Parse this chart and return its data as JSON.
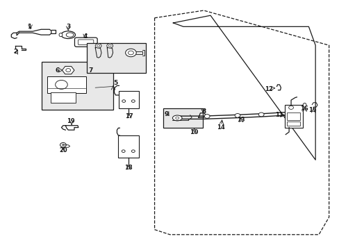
{
  "bg_color": "#ffffff",
  "line_color": "#1a1a1a",
  "box_fill": "#e8e8e8",
  "figsize": [
    4.89,
    3.6
  ],
  "dpi": 100,
  "door_outer": {
    "x": [
      0.455,
      0.455,
      0.5,
      0.94,
      0.97,
      0.97,
      0.6,
      0.455
    ],
    "y": [
      0.93,
      0.08,
      0.06,
      0.06,
      0.13,
      0.82,
      0.96,
      0.93
    ]
  },
  "door_inner_solid": {
    "x": [
      0.51,
      0.53,
      0.9,
      0.92,
      0.92,
      0.61,
      0.51
    ],
    "y": [
      0.91,
      0.895,
      0.895,
      0.82,
      0.36,
      0.94,
      0.91
    ]
  }
}
